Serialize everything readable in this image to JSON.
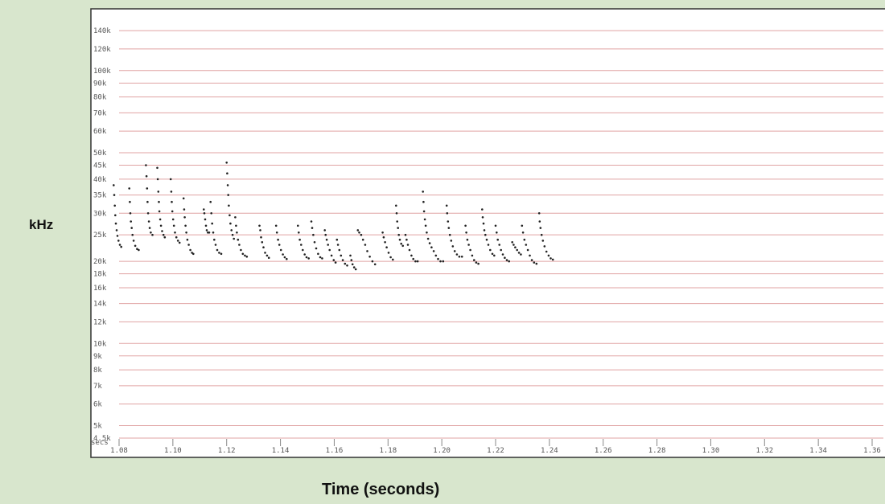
{
  "chart_data": {
    "type": "scatter",
    "title": "",
    "xlabel": "Time (seconds)",
    "ylabel": "kHz",
    "x_unit_label": "secs",
    "xlim": [
      1.07,
      1.3635
    ],
    "ylim_khz": [
      4.5,
      150
    ],
    "y_scale": "log",
    "grid": true,
    "y_ticks": [
      "140k",
      "120k",
      "100k",
      "90k",
      "80k",
      "70k",
      "60k",
      "50k",
      "45k",
      "40k",
      "35k",
      "30k",
      "25k",
      "20k",
      "18k",
      "16k",
      "14k",
      "12k",
      "10k",
      "9k",
      "8k",
      "7k",
      "6k",
      "5k",
      "4.5k"
    ],
    "y_tick_values": [
      140,
      120,
      100,
      90,
      80,
      70,
      60,
      50,
      45,
      40,
      35,
      30,
      25,
      20,
      18,
      16,
      14,
      12,
      10,
      9,
      8,
      7,
      6,
      5,
      4.5
    ],
    "x_ticks": [
      "1.08",
      "1.10",
      "1.12",
      "1.14",
      "1.16",
      "1.18",
      "1.20",
      "1.22",
      "1.24",
      "1.26",
      "1.28",
      "1.30",
      "1.32",
      "1.34",
      "1.36"
    ],
    "x_tick_values": [
      1.08,
      1.1,
      1.12,
      1.14,
      1.16,
      1.18,
      1.2,
      1.22,
      1.24,
      1.26,
      1.28,
      1.3,
      1.32,
      1.34,
      1.36
    ],
    "series": [
      {
        "points": [
          [
            1.078,
            38
          ],
          [
            1.0782,
            35
          ],
          [
            1.0784,
            32
          ],
          [
            1.0786,
            29.5
          ],
          [
            1.0788,
            27.5
          ],
          [
            1.0791,
            26
          ],
          [
            1.0794,
            24.8
          ],
          [
            1.0798,
            23.8
          ],
          [
            1.0803,
            23
          ],
          [
            1.0808,
            22.6
          ],
          [
            1.0838,
            37
          ],
          [
            1.084,
            33
          ],
          [
            1.0842,
            30
          ],
          [
            1.0844,
            28
          ],
          [
            1.0847,
            26.5
          ],
          [
            1.085,
            25
          ],
          [
            1.0854,
            23.8
          ],
          [
            1.086,
            22.8
          ],
          [
            1.0867,
            22.2
          ],
          [
            1.0873,
            22
          ],
          [
            1.09,
            45
          ],
          [
            1.0902,
            41
          ],
          [
            1.0904,
            37
          ],
          [
            1.0906,
            33
          ],
          [
            1.0908,
            30
          ],
          [
            1.0911,
            28
          ],
          [
            1.0914,
            26.5
          ],
          [
            1.0918,
            25.5
          ],
          [
            1.0924,
            25
          ],
          [
            1.0942,
            44
          ],
          [
            1.0944,
            40
          ],
          [
            1.0946,
            36
          ],
          [
            1.0948,
            33
          ],
          [
            1.095,
            30.5
          ],
          [
            1.0953,
            28.5
          ],
          [
            1.0956,
            27
          ],
          [
            1.096,
            25.8
          ],
          [
            1.0965,
            25
          ],
          [
            1.097,
            24.5
          ],
          [
            1.0992,
            40
          ],
          [
            1.0994,
            36
          ],
          [
            1.0996,
            33
          ],
          [
            1.0998,
            30.5
          ],
          [
            1.1001,
            28.5
          ],
          [
            1.1004,
            27
          ],
          [
            1.1008,
            25.5
          ],
          [
            1.1013,
            24.5
          ],
          [
            1.1019,
            23.8
          ],
          [
            1.1025,
            23.4
          ],
          [
            1.104,
            34
          ],
          [
            1.1042,
            31
          ],
          [
            1.1044,
            29
          ],
          [
            1.1047,
            27
          ],
          [
            1.105,
            25.5
          ],
          [
            1.1054,
            24
          ],
          [
            1.1059,
            23
          ],
          [
            1.1065,
            22
          ],
          [
            1.1071,
            21.5
          ],
          [
            1.1076,
            21.3
          ],
          [
            1.1115,
            31
          ],
          [
            1.1117,
            30
          ],
          [
            1.112,
            28.5
          ],
          [
            1.1123,
            27
          ],
          [
            1.1126,
            26
          ],
          [
            1.113,
            25.5
          ],
          [
            1.1135,
            25.5
          ],
          [
            1.114,
            33
          ],
          [
            1.1143,
            30
          ],
          [
            1.1146,
            27.5
          ],
          [
            1.115,
            25.5
          ],
          [
            1.1154,
            24
          ],
          [
            1.1159,
            23
          ],
          [
            1.1165,
            22
          ],
          [
            1.1172,
            21.5
          ],
          [
            1.118,
            21.3
          ],
          [
            1.12,
            46
          ],
          [
            1.1202,
            42
          ],
          [
            1.1204,
            38
          ],
          [
            1.1206,
            35
          ],
          [
            1.1208,
            32
          ],
          [
            1.1211,
            29.5
          ],
          [
            1.1214,
            27.5
          ],
          [
            1.1218,
            26
          ],
          [
            1.1222,
            25
          ],
          [
            1.1227,
            24.2
          ],
          [
            1.1232,
            29
          ],
          [
            1.1235,
            27
          ],
          [
            1.1238,
            25.5
          ],
          [
            1.1242,
            24
          ],
          [
            1.1247,
            23
          ],
          [
            1.1253,
            22
          ],
          [
            1.126,
            21.3
          ],
          [
            1.1268,
            21
          ],
          [
            1.1275,
            20.8
          ],
          [
            1.1322,
            27
          ],
          [
            1.1325,
            26
          ],
          [
            1.1328,
            24.5
          ],
          [
            1.1332,
            23.5
          ],
          [
            1.1337,
            22.5
          ],
          [
            1.1343,
            21.5
          ],
          [
            1.135,
            21
          ],
          [
            1.1357,
            20.6
          ],
          [
            1.1384,
            27
          ],
          [
            1.1387,
            25.5
          ],
          [
            1.1391,
            24
          ],
          [
            1.1396,
            23
          ],
          [
            1.1402,
            22
          ],
          [
            1.1409,
            21.2
          ],
          [
            1.1416,
            20.7
          ],
          [
            1.1423,
            20.4
          ],
          [
            1.1465,
            27
          ],
          [
            1.1468,
            25.5
          ],
          [
            1.1472,
            24
          ],
          [
            1.1477,
            23
          ],
          [
            1.1483,
            22
          ],
          [
            1.149,
            21.2
          ],
          [
            1.1497,
            20.7
          ],
          [
            1.1505,
            20.5
          ],
          [
            1.1515,
            28
          ],
          [
            1.1518,
            26.5
          ],
          [
            1.1522,
            25
          ],
          [
            1.1527,
            23.5
          ],
          [
            1.1533,
            22.3
          ],
          [
            1.154,
            21.3
          ],
          [
            1.1548,
            20.7
          ],
          [
            1.1555,
            20.5
          ],
          [
            1.1565,
            26
          ],
          [
            1.1568,
            25
          ],
          [
            1.1572,
            24
          ],
          [
            1.1577,
            23
          ],
          [
            1.1583,
            22
          ],
          [
            1.159,
            21
          ],
          [
            1.1598,
            20.2
          ],
          [
            1.1605,
            19.8
          ],
          [
            1.161,
            24
          ],
          [
            1.1614,
            23
          ],
          [
            1.1619,
            22
          ],
          [
            1.1625,
            21
          ],
          [
            1.1632,
            20.2
          ],
          [
            1.164,
            19.6
          ],
          [
            1.1648,
            19.3
          ],
          [
            1.166,
            21
          ],
          [
            1.1664,
            20.2
          ],
          [
            1.1668,
            19.5
          ],
          [
            1.1674,
            19
          ],
          [
            1.168,
            18.7
          ],
          [
            1.1688,
            26
          ],
          [
            1.1693,
            25.5
          ],
          [
            1.17,
            25
          ],
          [
            1.1707,
            24
          ],
          [
            1.1715,
            23
          ],
          [
            1.1723,
            21.8
          ],
          [
            1.1732,
            20.8
          ],
          [
            1.1742,
            20
          ],
          [
            1.1752,
            19.5
          ],
          [
            1.178,
            25.5
          ],
          [
            1.1784,
            24.5
          ],
          [
            1.1789,
            23.5
          ],
          [
            1.1795,
            22.5
          ],
          [
            1.1802,
            21.5
          ],
          [
            1.181,
            20.7
          ],
          [
            1.1818,
            20.3
          ],
          [
            1.183,
            32
          ],
          [
            1.1832,
            30
          ],
          [
            1.1834,
            28
          ],
          [
            1.1837,
            26.5
          ],
          [
            1.184,
            25
          ],
          [
            1.1844,
            24
          ],
          [
            1.1849,
            23.2
          ],
          [
            1.1855,
            22.8
          ],
          [
            1.1865,
            25
          ],
          [
            1.1869,
            24
          ],
          [
            1.1874,
            23
          ],
          [
            1.188,
            22
          ],
          [
            1.1887,
            21
          ],
          [
            1.1894,
            20.4
          ],
          [
            1.1902,
            20
          ],
          [
            1.191,
            20
          ],
          [
            1.193,
            36
          ],
          [
            1.1932,
            33
          ],
          [
            1.1934,
            30.5
          ],
          [
            1.1937,
            28.5
          ],
          [
            1.194,
            27
          ],
          [
            1.1944,
            25.5
          ],
          [
            1.1949,
            24.2
          ],
          [
            1.1955,
            23.3
          ],
          [
            1.1962,
            22.5
          ],
          [
            1.197,
            21.8
          ],
          [
            1.1978,
            21
          ],
          [
            1.1986,
            20.4
          ],
          [
            1.1995,
            20
          ],
          [
            1.2005,
            20
          ],
          [
            1.2018,
            32
          ],
          [
            1.202,
            30
          ],
          [
            1.2023,
            28
          ],
          [
            1.2026,
            26.5
          ],
          [
            1.203,
            25
          ],
          [
            1.2035,
            23.8
          ],
          [
            1.2041,
            22.7
          ],
          [
            1.2048,
            21.8
          ],
          [
            1.2056,
            21.2
          ],
          [
            1.2065,
            20.8
          ],
          [
            1.2075,
            20.8
          ],
          [
            1.2088,
            27
          ],
          [
            1.2091,
            25.5
          ],
          [
            1.2095,
            24
          ],
          [
            1.21,
            23
          ],
          [
            1.2106,
            22
          ],
          [
            1.2113,
            21
          ],
          [
            1.212,
            20.2
          ],
          [
            1.2128,
            19.8
          ],
          [
            1.2136,
            19.6
          ],
          [
            1.215,
            31
          ],
          [
            1.2152,
            29
          ],
          [
            1.2155,
            27.5
          ],
          [
            1.2158,
            26
          ],
          [
            1.2162,
            25
          ],
          [
            1.2167,
            24
          ],
          [
            1.2173,
            23
          ],
          [
            1.218,
            22
          ],
          [
            1.2188,
            21.3
          ],
          [
            1.2195,
            21
          ],
          [
            1.22,
            27
          ],
          [
            1.2204,
            25.5
          ],
          [
            1.2208,
            24
          ],
          [
            1.2214,
            23
          ],
          [
            1.222,
            22
          ],
          [
            1.2227,
            21.2
          ],
          [
            1.2234,
            20.6
          ],
          [
            1.2242,
            20.2
          ],
          [
            1.225,
            20
          ],
          [
            1.2262,
            23.5
          ],
          [
            1.2267,
            23
          ],
          [
            1.2273,
            22.5
          ],
          [
            1.228,
            22
          ],
          [
            1.2287,
            21.5
          ],
          [
            1.2294,
            21.2
          ],
          [
            1.2298,
            27
          ],
          [
            1.2302,
            25.5
          ],
          [
            1.2307,
            24
          ],
          [
            1.2313,
            23
          ],
          [
            1.232,
            22
          ],
          [
            1.2327,
            21
          ],
          [
            1.2335,
            20.2
          ],
          [
            1.2343,
            19.8
          ],
          [
            1.2352,
            19.6
          ],
          [
            1.2362,
            30
          ],
          [
            1.2364,
            28
          ],
          [
            1.2367,
            26.5
          ],
          [
            1.2371,
            25
          ],
          [
            1.2376,
            23.8
          ],
          [
            1.2382,
            22.7
          ],
          [
            1.2389,
            21.7
          ],
          [
            1.2397,
            21
          ],
          [
            1.2405,
            20.5
          ],
          [
            1.2413,
            20.3
          ]
        ]
      }
    ]
  }
}
